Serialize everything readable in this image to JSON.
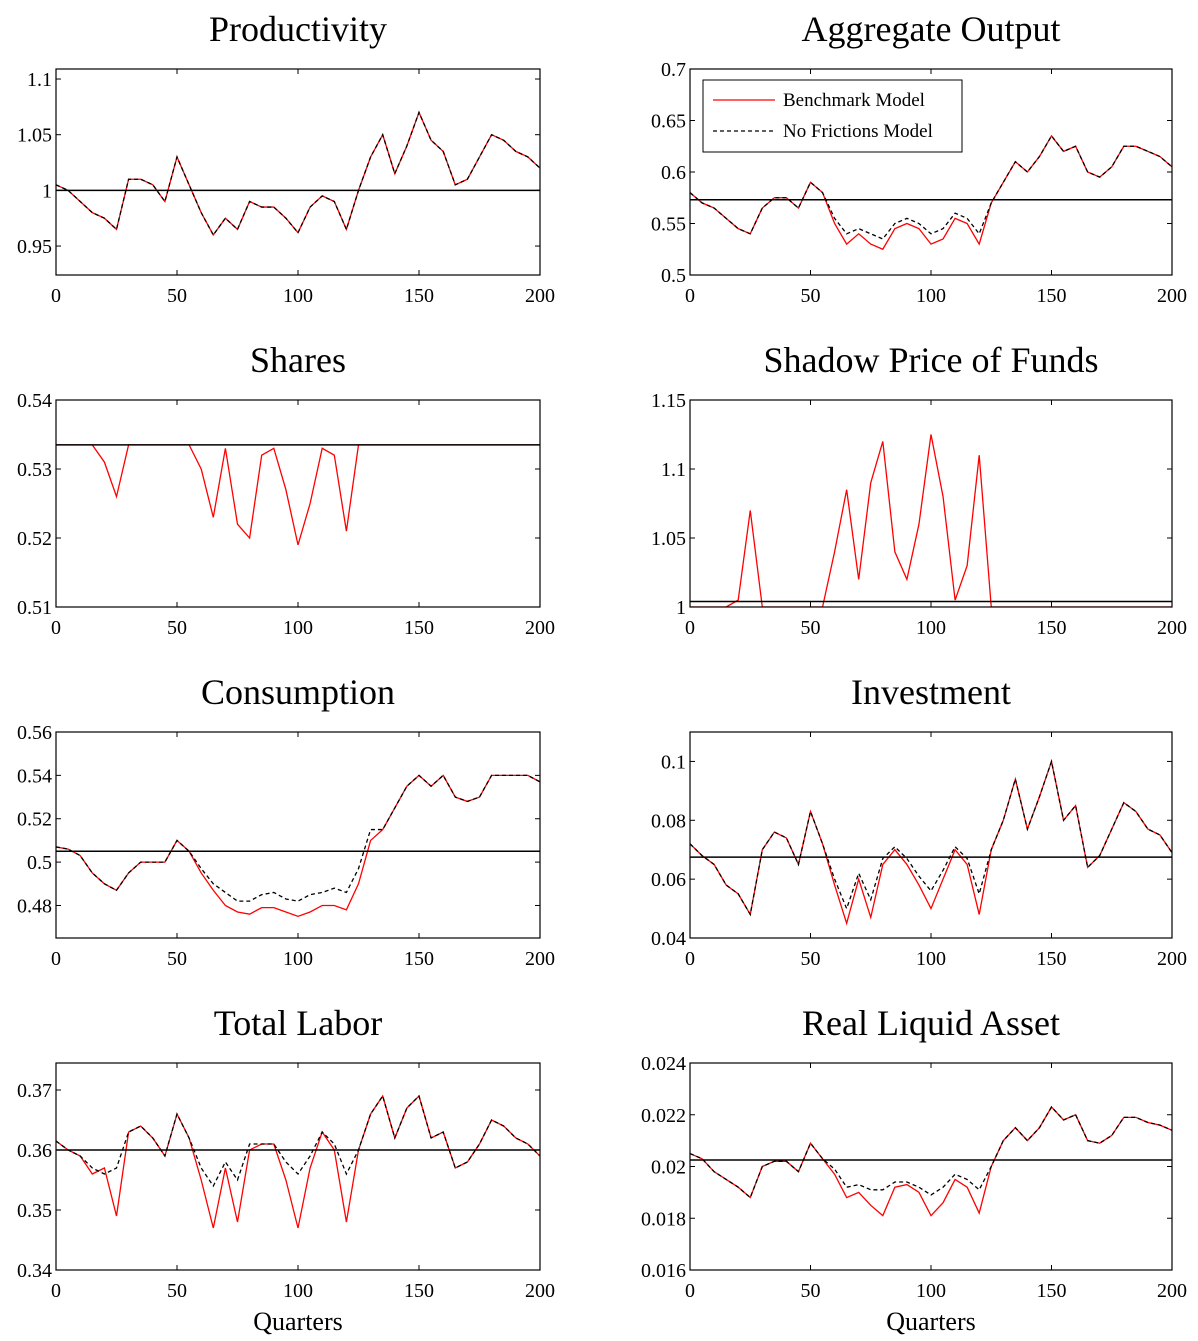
{
  "chart_data": [
    {
      "type": "line",
      "title": "Productivity",
      "x": [
        0,
        5,
        10,
        15,
        20,
        25,
        30,
        35,
        40,
        45,
        50,
        55,
        60,
        65,
        70,
        75,
        80,
        85,
        90,
        95,
        100,
        105,
        110,
        115,
        120,
        125,
        130,
        135,
        140,
        145,
        150,
        155,
        160,
        165,
        170,
        175,
        180,
        185,
        190,
        195,
        200
      ],
      "series": [
        {
          "color": "#ff0000",
          "dash": false,
          "values": [
            1.005,
            1.0,
            0.99,
            0.98,
            0.975,
            0.965,
            1.01,
            1.01,
            1.005,
            0.99,
            1.03,
            1.005,
            0.98,
            0.96,
            0.975,
            0.965,
            0.99,
            0.985,
            0.985,
            0.975,
            0.962,
            0.985,
            0.995,
            0.99,
            0.965,
            1.0,
            1.03,
            1.05,
            1.015,
            1.04,
            1.07,
            1.045,
            1.035,
            1.005,
            1.01,
            1.03,
            1.05,
            1.045,
            1.035,
            1.03,
            1.02
          ]
        },
        {
          "color": "#000000",
          "dash": true,
          "values": [
            1.005,
            1.0,
            0.99,
            0.98,
            0.975,
            0.965,
            1.01,
            1.01,
            1.005,
            0.99,
            1.03,
            1.005,
            0.98,
            0.96,
            0.975,
            0.965,
            0.99,
            0.985,
            0.985,
            0.975,
            0.962,
            0.985,
            0.995,
            0.99,
            0.965,
            1.0,
            1.03,
            1.05,
            1.015,
            1.04,
            1.07,
            1.045,
            1.035,
            1.005,
            1.01,
            1.03,
            1.05,
            1.045,
            1.035,
            1.03,
            1.02
          ]
        }
      ],
      "hline": 1.0,
      "xlim": [
        0,
        200
      ],
      "xticks": [
        0,
        50,
        100,
        150,
        200
      ],
      "ylim": [
        0.924,
        1.109
      ],
      "yticks": [
        0.95,
        1,
        1.05,
        1.1
      ]
    },
    {
      "type": "line",
      "title": "Aggregate Output",
      "legend": "upper left",
      "x": [
        0,
        5,
        10,
        15,
        20,
        25,
        30,
        35,
        40,
        45,
        50,
        55,
        60,
        65,
        70,
        75,
        80,
        85,
        90,
        95,
        100,
        105,
        110,
        115,
        120,
        125,
        130,
        135,
        140,
        145,
        150,
        155,
        160,
        165,
        170,
        175,
        180,
        185,
        190,
        195,
        200
      ],
      "series": [
        {
          "name": "Benchmark Model",
          "color": "#ff0000",
          "dash": false,
          "values": [
            0.58,
            0.57,
            0.565,
            0.555,
            0.545,
            0.54,
            0.565,
            0.575,
            0.575,
            0.565,
            0.59,
            0.58,
            0.55,
            0.53,
            0.54,
            0.53,
            0.525,
            0.545,
            0.55,
            0.545,
            0.53,
            0.535,
            0.555,
            0.55,
            0.53,
            0.57,
            0.59,
            0.61,
            0.6,
            0.615,
            0.635,
            0.62,
            0.625,
            0.6,
            0.595,
            0.605,
            0.625,
            0.625,
            0.62,
            0.615,
            0.605
          ]
        },
        {
          "name": "No Frictions Model",
          "color": "#000000",
          "dash": true,
          "values": [
            0.58,
            0.57,
            0.565,
            0.555,
            0.545,
            0.54,
            0.565,
            0.575,
            0.575,
            0.565,
            0.59,
            0.58,
            0.555,
            0.54,
            0.545,
            0.54,
            0.535,
            0.55,
            0.555,
            0.55,
            0.54,
            0.545,
            0.56,
            0.555,
            0.54,
            0.57,
            0.59,
            0.61,
            0.6,
            0.615,
            0.635,
            0.62,
            0.625,
            0.6,
            0.595,
            0.605,
            0.625,
            0.625,
            0.62,
            0.615,
            0.605
          ]
        }
      ],
      "hline": 0.573,
      "xlim": [
        0,
        200
      ],
      "xticks": [
        0,
        50,
        100,
        150,
        200
      ],
      "ylim": [
        0.5,
        0.7
      ],
      "yticks": [
        0.5,
        0.55,
        0.6,
        0.65,
        0.7
      ]
    },
    {
      "type": "line",
      "title": "Shares",
      "x": [
        0,
        5,
        10,
        15,
        20,
        25,
        30,
        35,
        40,
        45,
        50,
        55,
        60,
        65,
        70,
        75,
        80,
        85,
        90,
        95,
        100,
        105,
        110,
        115,
        120,
        125,
        130,
        135,
        140,
        145,
        150,
        155,
        160,
        165,
        170,
        175,
        180,
        185,
        190,
        195,
        200
      ],
      "series": [
        {
          "color": "#ff0000",
          "dash": false,
          "values": [
            0.5335,
            0.5335,
            0.5335,
            0.5335,
            0.531,
            0.526,
            0.5335,
            0.5335,
            0.5335,
            0.5335,
            0.5335,
            0.5335,
            0.53,
            0.523,
            0.533,
            0.522,
            0.52,
            0.532,
            0.533,
            0.527,
            0.519,
            0.525,
            0.533,
            0.532,
            0.521,
            0.5335,
            0.5335,
            0.5335,
            0.5335,
            0.5335,
            0.5335,
            0.5335,
            0.5335,
            0.5335,
            0.5335,
            0.5335,
            0.5335,
            0.5335,
            0.5335,
            0.5335,
            0.5335
          ]
        }
      ],
      "hline": 0.5335,
      "xlim": [
        0,
        200
      ],
      "xticks": [
        0,
        50,
        100,
        150,
        200
      ],
      "ylim": [
        0.51,
        0.54
      ],
      "yticks": [
        0.51,
        0.52,
        0.53,
        0.54
      ]
    },
    {
      "type": "line",
      "title": "Shadow Price of Funds",
      "x": [
        0,
        5,
        10,
        15,
        20,
        25,
        30,
        35,
        40,
        45,
        50,
        55,
        60,
        65,
        70,
        75,
        80,
        85,
        90,
        95,
        100,
        105,
        110,
        115,
        120,
        125,
        130,
        135,
        140,
        145,
        150,
        155,
        160,
        165,
        170,
        175,
        180,
        185,
        190,
        195,
        200
      ],
      "series": [
        {
          "color": "#ff0000",
          "dash": false,
          "values": [
            1,
            1,
            1,
            1,
            1.005,
            1.07,
            1,
            1,
            1,
            1,
            1,
            1,
            1.04,
            1.085,
            1.02,
            1.09,
            1.12,
            1.04,
            1.02,
            1.06,
            1.125,
            1.08,
            1.005,
            1.03,
            1.11,
            1,
            1,
            1,
            1,
            1,
            1,
            1,
            1,
            1,
            1,
            1,
            1,
            1,
            1,
            1,
            1
          ]
        }
      ],
      "hline": 1.004,
      "xlim": [
        0,
        200
      ],
      "xticks": [
        0,
        50,
        100,
        150,
        200
      ],
      "ylim": [
        1,
        1.15
      ],
      "yticks": [
        1,
        1.05,
        1.1,
        1.15
      ]
    },
    {
      "type": "line",
      "title": "Consumption",
      "x": [
        0,
        5,
        10,
        15,
        20,
        25,
        30,
        35,
        40,
        45,
        50,
        55,
        60,
        65,
        70,
        75,
        80,
        85,
        90,
        95,
        100,
        105,
        110,
        115,
        120,
        125,
        130,
        135,
        140,
        145,
        150,
        155,
        160,
        165,
        170,
        175,
        180,
        185,
        190,
        195,
        200
      ],
      "series": [
        {
          "color": "#ff0000",
          "dash": false,
          "values": [
            0.507,
            0.506,
            0.503,
            0.495,
            0.49,
            0.487,
            0.495,
            0.5,
            0.5,
            0.5,
            0.51,
            0.505,
            0.495,
            0.487,
            0.48,
            0.477,
            0.476,
            0.479,
            0.479,
            0.477,
            0.475,
            0.477,
            0.48,
            0.48,
            0.478,
            0.49,
            0.51,
            0.515,
            0.525,
            0.535,
            0.54,
            0.535,
            0.54,
            0.53,
            0.528,
            0.53,
            0.54,
            0.54,
            0.54,
            0.54,
            0.537
          ]
        },
        {
          "color": "#000000",
          "dash": true,
          "values": [
            0.507,
            0.506,
            0.503,
            0.495,
            0.49,
            0.487,
            0.495,
            0.5,
            0.5,
            0.5,
            0.51,
            0.505,
            0.497,
            0.49,
            0.486,
            0.482,
            0.482,
            0.485,
            0.486,
            0.483,
            0.482,
            0.485,
            0.486,
            0.488,
            0.486,
            0.497,
            0.515,
            0.515,
            0.525,
            0.535,
            0.54,
            0.535,
            0.54,
            0.53,
            0.528,
            0.53,
            0.54,
            0.54,
            0.54,
            0.54,
            0.537
          ]
        }
      ],
      "hline": 0.505,
      "xlim": [
        0,
        200
      ],
      "xticks": [
        0,
        50,
        100,
        150,
        200
      ],
      "ylim": [
        0.465,
        0.56
      ],
      "yticks": [
        0.48,
        0.5,
        0.52,
        0.54,
        0.56
      ]
    },
    {
      "type": "line",
      "title": "Investment",
      "x": [
        0,
        5,
        10,
        15,
        20,
        25,
        30,
        35,
        40,
        45,
        50,
        55,
        60,
        65,
        70,
        75,
        80,
        85,
        90,
        95,
        100,
        105,
        110,
        115,
        120,
        125,
        130,
        135,
        140,
        145,
        150,
        155,
        160,
        165,
        170,
        175,
        180,
        185,
        190,
        195,
        200
      ],
      "series": [
        {
          "color": "#ff0000",
          "dash": false,
          "values": [
            0.072,
            0.068,
            0.065,
            0.058,
            0.055,
            0.048,
            0.07,
            0.076,
            0.074,
            0.065,
            0.083,
            0.072,
            0.058,
            0.045,
            0.06,
            0.047,
            0.065,
            0.07,
            0.065,
            0.058,
            0.05,
            0.06,
            0.07,
            0.065,
            0.048,
            0.07,
            0.08,
            0.094,
            0.077,
            0.088,
            0.1,
            0.08,
            0.085,
            0.064,
            0.068,
            0.077,
            0.086,
            0.083,
            0.077,
            0.075,
            0.069
          ]
        },
        {
          "color": "#000000",
          "dash": true,
          "values": [
            0.072,
            0.068,
            0.065,
            0.058,
            0.055,
            0.048,
            0.07,
            0.076,
            0.074,
            0.065,
            0.083,
            0.072,
            0.06,
            0.05,
            0.062,
            0.053,
            0.067,
            0.071,
            0.067,
            0.061,
            0.056,
            0.063,
            0.071,
            0.067,
            0.055,
            0.07,
            0.08,
            0.094,
            0.077,
            0.088,
            0.1,
            0.08,
            0.085,
            0.064,
            0.068,
            0.077,
            0.086,
            0.083,
            0.077,
            0.075,
            0.069
          ]
        }
      ],
      "hline": 0.0675,
      "xlim": [
        0,
        200
      ],
      "xticks": [
        0,
        50,
        100,
        150,
        200
      ],
      "ylim": [
        0.04,
        0.11
      ],
      "yticks": [
        0.04,
        0.06,
        0.08,
        0.1
      ]
    },
    {
      "type": "line",
      "title": "Total Labor",
      "xlabel": "Quarters",
      "x": [
        0,
        5,
        10,
        15,
        20,
        25,
        30,
        35,
        40,
        45,
        50,
        55,
        60,
        65,
        70,
        75,
        80,
        85,
        90,
        95,
        100,
        105,
        110,
        115,
        120,
        125,
        130,
        135,
        140,
        145,
        150,
        155,
        160,
        165,
        170,
        175,
        180,
        185,
        190,
        195,
        200
      ],
      "series": [
        {
          "color": "#ff0000",
          "dash": false,
          "values": [
            0.3615,
            0.36,
            0.359,
            0.356,
            0.357,
            0.349,
            0.363,
            0.364,
            0.362,
            0.359,
            0.366,
            0.362,
            0.355,
            0.347,
            0.357,
            0.348,
            0.36,
            0.361,
            0.361,
            0.355,
            0.347,
            0.357,
            0.363,
            0.36,
            0.348,
            0.36,
            0.366,
            0.369,
            0.362,
            0.367,
            0.369,
            0.362,
            0.363,
            0.357,
            0.358,
            0.361,
            0.365,
            0.364,
            0.362,
            0.361,
            0.359
          ]
        },
        {
          "color": "#000000",
          "dash": true,
          "values": [
            0.3615,
            0.36,
            0.359,
            0.357,
            0.356,
            0.357,
            0.363,
            0.364,
            0.362,
            0.359,
            0.366,
            0.362,
            0.357,
            0.354,
            0.358,
            0.355,
            0.361,
            0.361,
            0.361,
            0.358,
            0.356,
            0.359,
            0.363,
            0.361,
            0.356,
            0.36,
            0.366,
            0.369,
            0.362,
            0.367,
            0.369,
            0.362,
            0.363,
            0.357,
            0.358,
            0.361,
            0.365,
            0.364,
            0.362,
            0.361,
            0.359
          ]
        }
      ],
      "hline": 0.36,
      "xlim": [
        0,
        200
      ],
      "xticks": [
        0,
        50,
        100,
        150,
        200
      ],
      "ylim": [
        0.34,
        0.3745
      ],
      "yticks": [
        0.34,
        0.35,
        0.36,
        0.37
      ]
    },
    {
      "type": "line",
      "title": "Real Liquid Asset",
      "xlabel": "Quarters",
      "x": [
        0,
        5,
        10,
        15,
        20,
        25,
        30,
        35,
        40,
        45,
        50,
        55,
        60,
        65,
        70,
        75,
        80,
        85,
        90,
        95,
        100,
        105,
        110,
        115,
        120,
        125,
        130,
        135,
        140,
        145,
        150,
        155,
        160,
        165,
        170,
        175,
        180,
        185,
        190,
        195,
        200
      ],
      "series": [
        {
          "color": "#ff0000",
          "dash": false,
          "values": [
            0.0205,
            0.0203,
            0.0198,
            0.0195,
            0.0192,
            0.0188,
            0.02,
            0.0202,
            0.0202,
            0.0198,
            0.0209,
            0.0203,
            0.0197,
            0.0188,
            0.019,
            0.0185,
            0.0181,
            0.0192,
            0.0193,
            0.019,
            0.0181,
            0.0186,
            0.0195,
            0.0192,
            0.0182,
            0.02,
            0.021,
            0.0215,
            0.021,
            0.0215,
            0.0223,
            0.0218,
            0.022,
            0.021,
            0.0209,
            0.0212,
            0.0219,
            0.0219,
            0.0217,
            0.0216,
            0.0214
          ]
        },
        {
          "color": "#000000",
          "dash": true,
          "values": [
            0.0205,
            0.0203,
            0.0198,
            0.0195,
            0.0192,
            0.0188,
            0.02,
            0.0202,
            0.0202,
            0.0198,
            0.0209,
            0.0203,
            0.0199,
            0.0192,
            0.0193,
            0.0191,
            0.0191,
            0.0194,
            0.0194,
            0.0192,
            0.0189,
            0.0192,
            0.0197,
            0.0195,
            0.0191,
            0.02,
            0.021,
            0.0215,
            0.021,
            0.0215,
            0.0223,
            0.0218,
            0.022,
            0.021,
            0.0209,
            0.0212,
            0.0219,
            0.0219,
            0.0217,
            0.0216,
            0.0214
          ]
        }
      ],
      "hline": 0.02025,
      "xlim": [
        0,
        200
      ],
      "xticks": [
        0,
        50,
        100,
        150,
        200
      ],
      "ylim": [
        0.016,
        0.024
      ],
      "yticks": [
        0.016,
        0.018,
        0.02,
        0.022,
        0.024
      ]
    }
  ]
}
